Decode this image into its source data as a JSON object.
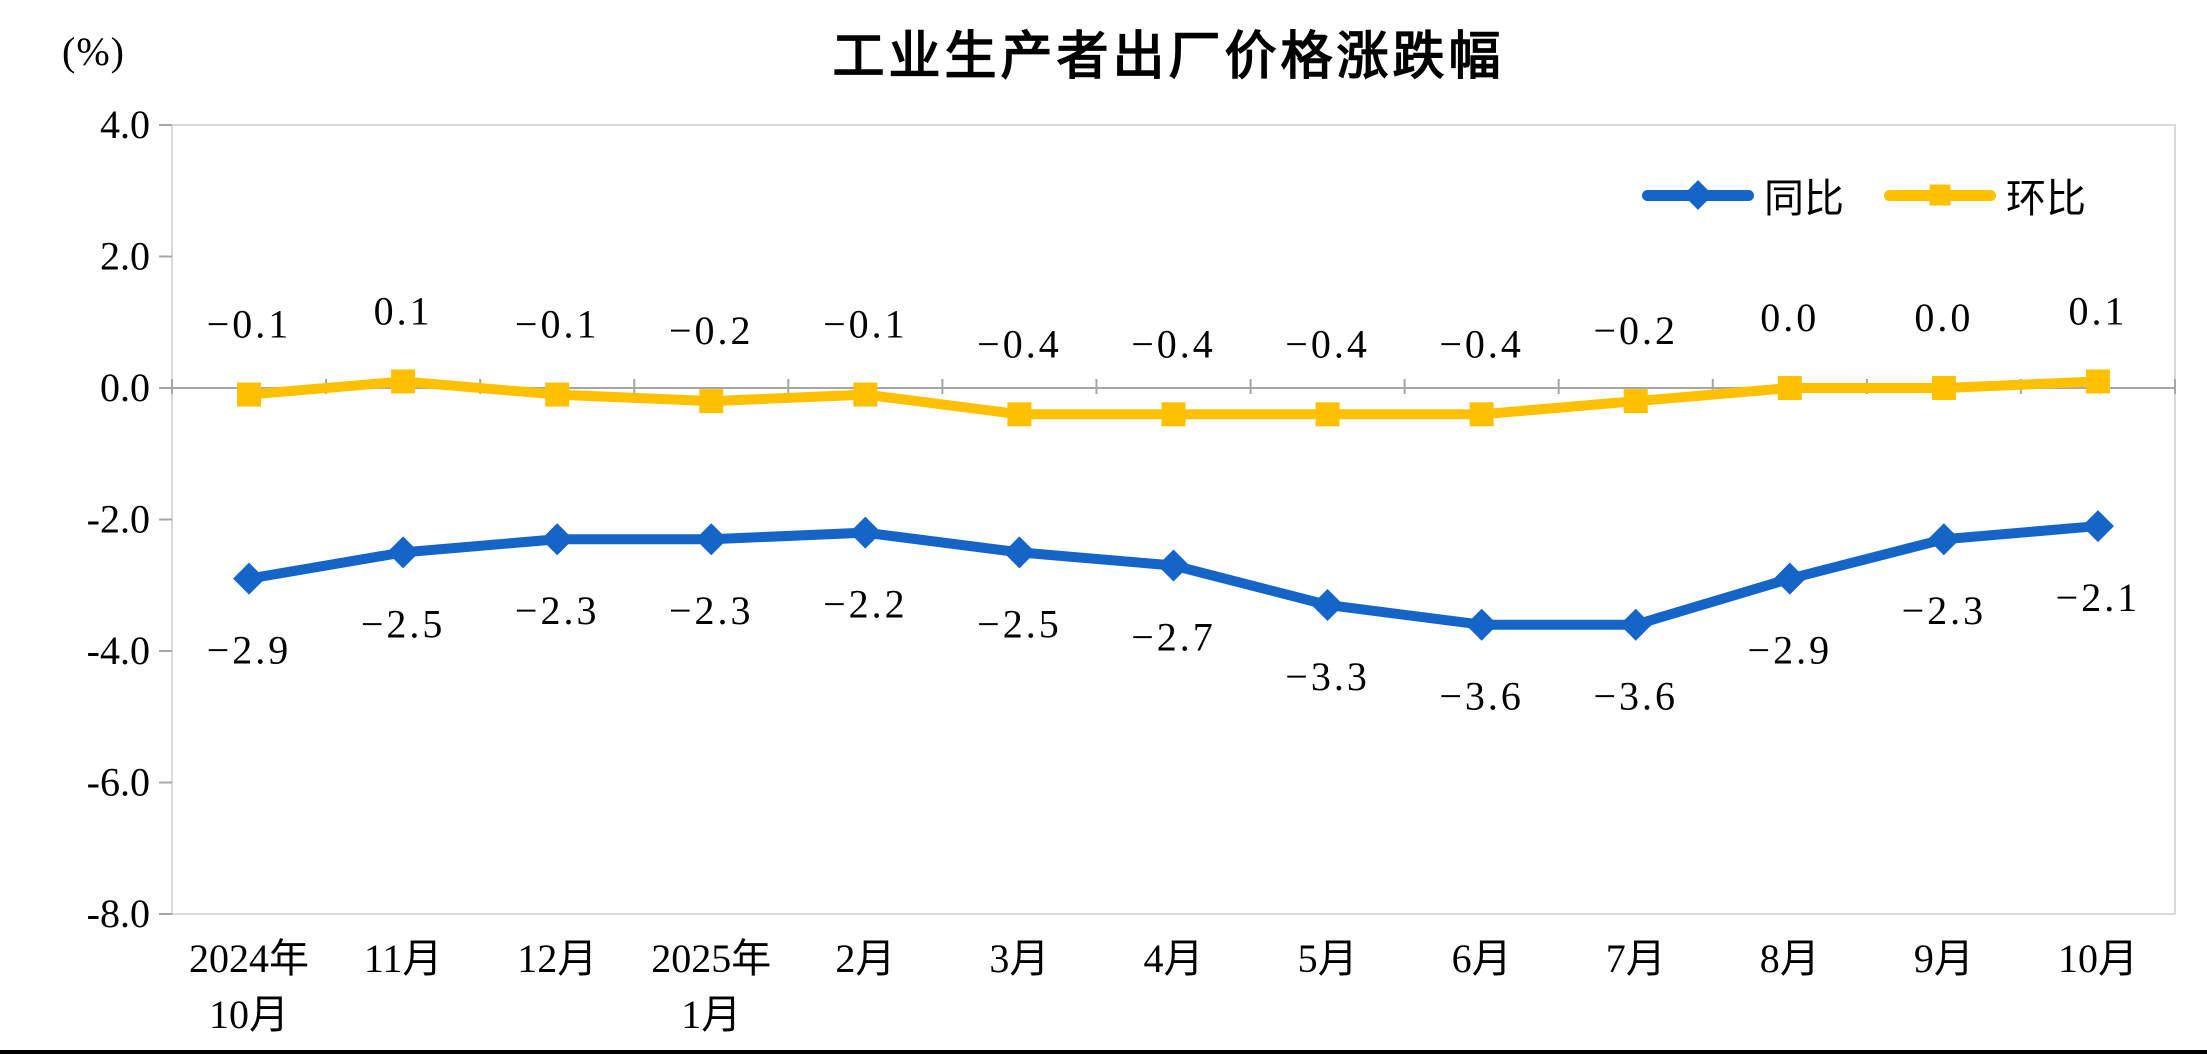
{
  "page": {
    "background": "#ffffff",
    "bottom_bar_color": "#000000"
  },
  "chart_data": {
    "type": "line",
    "title": "工业生产者出厂价格涨跌幅",
    "unit_label": "(%)",
    "categories": [
      [
        "2024年",
        "10月"
      ],
      [
        "11月"
      ],
      [
        "12月"
      ],
      [
        "2025年",
        "1月"
      ],
      [
        "2月"
      ],
      [
        "3月"
      ],
      [
        "4月"
      ],
      [
        "5月"
      ],
      [
        "6月"
      ],
      [
        "7月"
      ],
      [
        "8月"
      ],
      [
        "9月"
      ],
      [
        "10月"
      ]
    ],
    "y_axis": {
      "min": -8.0,
      "max": 4.0,
      "tick_interval": 2.0,
      "tick_labels": [
        "4.0",
        "2.0",
        "0.0",
        "-2.0",
        "-4.0",
        "-6.0",
        "-8.0"
      ]
    },
    "series": [
      {
        "name": "同比",
        "color": "#1565C8",
        "marker": "diamond",
        "label_position": "below",
        "values": [
          -2.9,
          -2.5,
          -2.3,
          -2.3,
          -2.2,
          -2.5,
          -2.7,
          -3.3,
          -3.6,
          -3.6,
          -2.9,
          -2.3,
          -2.1
        ],
        "labels": [
          "−2.9",
          "−2.5",
          "−2.3",
          "−2.3",
          "−2.2",
          "−2.5",
          "−2.7",
          "−3.3",
          "−3.6",
          "−3.6",
          "−2.9",
          "−2.3",
          "−2.1"
        ]
      },
      {
        "name": "环比",
        "color": "#FFC000",
        "marker": "square",
        "label_position": "above",
        "values": [
          -0.1,
          0.1,
          -0.1,
          -0.2,
          -0.1,
          -0.4,
          -0.4,
          -0.4,
          -0.4,
          -0.2,
          0.0,
          0.0,
          0.1
        ],
        "labels": [
          "−0.1",
          "0.1",
          "−0.1",
          "−0.2",
          "−0.1",
          "−0.4",
          "−0.4",
          "−0.4",
          "−0.4",
          "−0.2",
          "0.0",
          "0.0",
          "0.1"
        ]
      }
    ],
    "legend_position": "top-right",
    "grid": "zero-line-only",
    "axis_colors": {
      "plot_border": "#D9D9D9",
      "zero_line": "#A6A6A6",
      "tick": "#A6A6A6",
      "text": "#000000"
    }
  }
}
